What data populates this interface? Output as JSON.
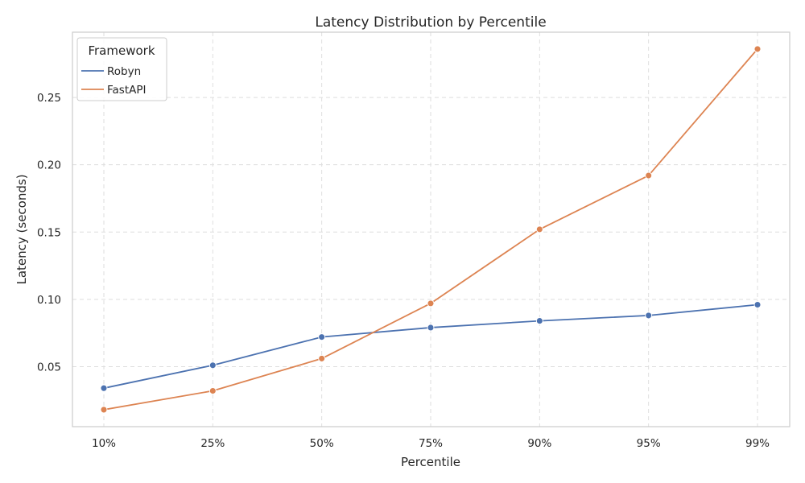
{
  "chart_data": {
    "type": "line",
    "title": "Latency Distribution by Percentile",
    "xlabel": "Percentile",
    "ylabel": "Latency (seconds)",
    "categories": [
      "10%",
      "25%",
      "50%",
      "75%",
      "90%",
      "95%",
      "99%"
    ],
    "series": [
      {
        "name": "Robyn",
        "color": "#4c72b0",
        "values": [
          0.034,
          0.051,
          0.072,
          0.079,
          0.084,
          0.088,
          0.096
        ]
      },
      {
        "name": "FastAPI",
        "color": "#dd8452",
        "values": [
          0.018,
          0.032,
          0.056,
          0.097,
          0.152,
          0.192,
          0.286
        ]
      }
    ],
    "yticks": [
      0.05,
      0.1,
      0.15,
      0.2,
      0.25
    ],
    "ytick_labels": [
      "0.05",
      "0.10",
      "0.15",
      "0.20",
      "0.25"
    ],
    "ylim": [
      0.0054,
      0.2985
    ],
    "grid": true,
    "legend": {
      "title": "Framework",
      "placement": "top-left"
    }
  }
}
